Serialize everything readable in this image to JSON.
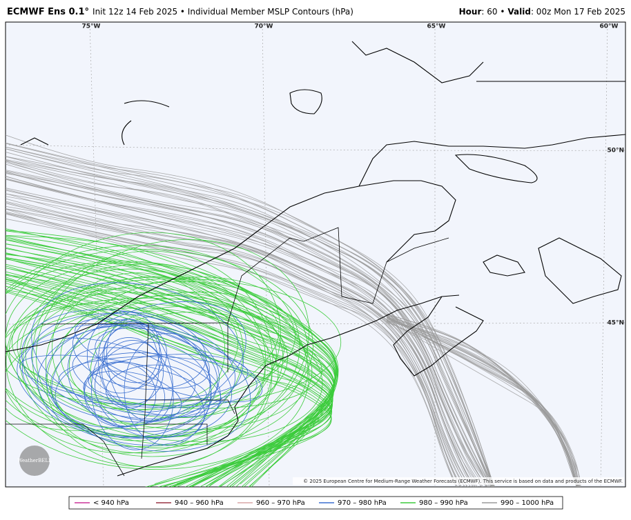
{
  "header": {
    "model": "ECMWF Ens 0.1°",
    "description": "Init 12z 14 Feb 2025 • Individual Member MSLP Contours (hPa)",
    "hour_label": "Hour",
    "hour_value": ": 60 •",
    "valid_label": "Valid",
    "valid_value": ": 00z Mon 17 Feb 2025"
  },
  "map": {
    "lon_labels": [
      "75°W",
      "70°W",
      "65°W",
      "60°W"
    ],
    "lat_labels": [
      "50°N",
      "45°N"
    ],
    "copyright": "© 2025 European Centre for Medium-Range Weather Forecasts (ECMWF). This service is based on data and products of the ECMWF.",
    "logo": "WeatherBELL"
  },
  "legend": [
    {
      "label": "< 940 hPa",
      "color": "#cc3399"
    },
    {
      "label": "940 – 960 hPa",
      "color": "#993344"
    },
    {
      "label": "960 – 970 hPa",
      "color": "#d9a6a6"
    },
    {
      "label": "970 – 980 hPa",
      "color": "#3a6fd0"
    },
    {
      "label": "980 – 990 hPa",
      "color": "#3ccc3c"
    },
    {
      "label": "990 – 1000 hPa",
      "color": "#9a9a9a"
    }
  ]
}
